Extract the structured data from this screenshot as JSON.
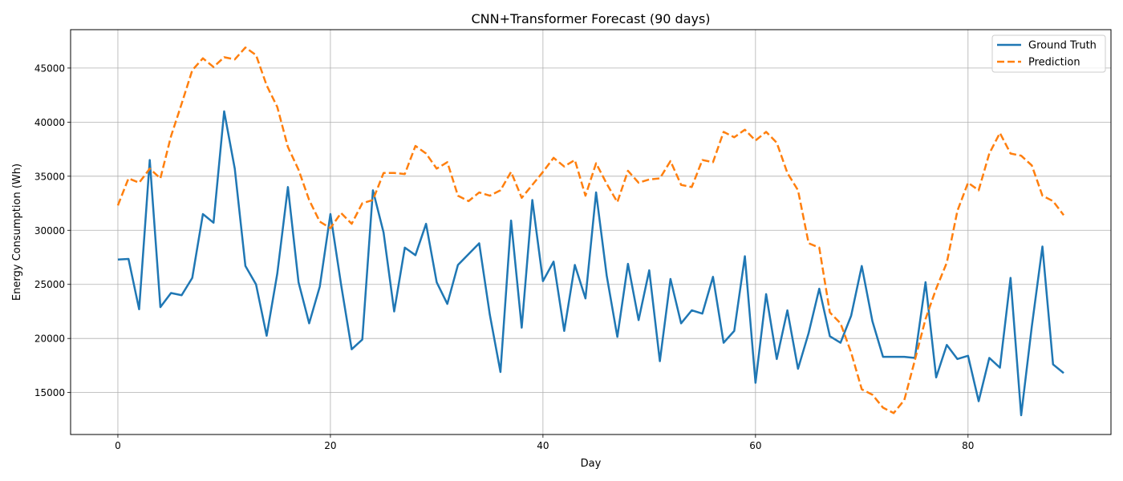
{
  "chart_data": {
    "type": "line",
    "title": "CNN+Transformer Forecast (90 days)",
    "xlabel": "Day",
    "ylabel": "Energy Consumption (Wh)",
    "xlim": [
      -4.45,
      93.45
    ],
    "ylim": [
      11120,
      48550
    ],
    "xticks": [
      0,
      20,
      40,
      60,
      80
    ],
    "yticks": [
      15000,
      20000,
      25000,
      30000,
      35000,
      40000,
      45000
    ],
    "grid": true,
    "legend_position": "top-right",
    "x": [
      0,
      1,
      2,
      3,
      4,
      5,
      6,
      7,
      8,
      9,
      10,
      11,
      12,
      13,
      14,
      15,
      16,
      17,
      18,
      19,
      20,
      21,
      22,
      23,
      24,
      25,
      26,
      27,
      28,
      29,
      30,
      31,
      32,
      33,
      34,
      35,
      36,
      37,
      38,
      39,
      40,
      41,
      42,
      43,
      44,
      45,
      46,
      47,
      48,
      49,
      50,
      51,
      52,
      53,
      54,
      55,
      56,
      57,
      58,
      59,
      60,
      61,
      62,
      63,
      64,
      65,
      66,
      67,
      68,
      69,
      70,
      71,
      72,
      73,
      74,
      75,
      76,
      77,
      78,
      79,
      80,
      81,
      82,
      83,
      84,
      85,
      86,
      87,
      88,
      89
    ],
    "series": [
      {
        "name": "Ground Truth",
        "color": "#1f77b4",
        "style": "solid",
        "values": [
          27300,
          27350,
          22700,
          36500,
          22900,
          24200,
          24000,
          25600,
          31500,
          30700,
          41000,
          35700,
          26700,
          25000,
          20250,
          26000,
          34000,
          25200,
          21400,
          24800,
          31500,
          25000,
          19000,
          19900,
          33700,
          29800,
          22500,
          28400,
          27700,
          30600,
          25200,
          23200,
          26800,
          27800,
          28800,
          22200,
          16900,
          30900,
          21000,
          32800,
          25300,
          27100,
          20700,
          26800,
          23700,
          33500,
          25800,
          20150,
          26900,
          21700,
          26300,
          17900,
          25500,
          21400,
          22600,
          22300,
          25700,
          19600,
          20700,
          27600,
          15900,
          24100,
          18100,
          22600,
          17200,
          20500,
          24600,
          20200,
          19600,
          22100,
          26700,
          21600,
          18300,
          18300,
          18300,
          18200,
          25200,
          16400,
          19400,
          18100,
          18400,
          14200,
          18200,
          17300,
          25600,
          12900,
          21100,
          28500,
          17600,
          16800
        ]
      },
      {
        "name": "Prediction",
        "color": "#ff7f0e",
        "style": "dashed",
        "values": [
          32300,
          34800,
          34400,
          35700,
          34800,
          38700,
          41700,
          44800,
          45900,
          45100,
          46000,
          45800,
          46900,
          46200,
          43400,
          41400,
          37700,
          35600,
          32800,
          30800,
          30200,
          31600,
          30600,
          32500,
          32800,
          35300,
          35300,
          35200,
          37800,
          37100,
          35700,
          36300,
          33200,
          32700,
          33500,
          33200,
          33700,
          35400,
          33000,
          34200,
          35400,
          36700,
          35900,
          36500,
          33200,
          36200,
          34300,
          32600,
          35500,
          34400,
          34700,
          34800,
          36400,
          34200,
          34000,
          36500,
          36300,
          39100,
          38600,
          39300,
          38300,
          39100,
          38100,
          35300,
          33700,
          28800,
          28400,
          22400,
          21400,
          18700,
          15300,
          14800,
          13600,
          13100,
          14300,
          18000,
          21800,
          24600,
          27000,
          31800,
          34400,
          33700,
          37100,
          39000,
          37100,
          36900,
          36000,
          33200,
          32700,
          31400
        ]
      }
    ]
  }
}
